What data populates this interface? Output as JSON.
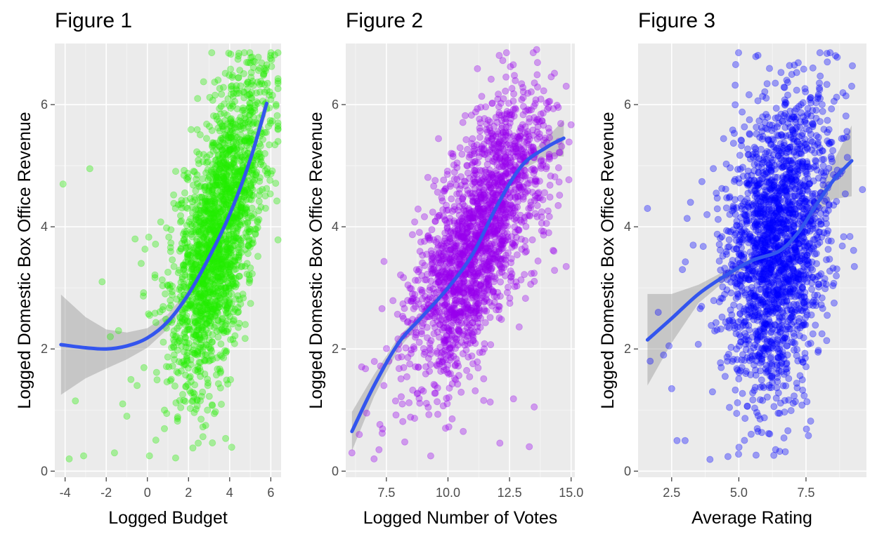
{
  "chart_data": [
    {
      "type": "scatter",
      "title": "Figure 1",
      "xlabel": "Logged Budget",
      "ylabel": "Logged Domestic Box Office Revenue",
      "xlim": [
        -4.5,
        6.5
      ],
      "ylim": [
        -0.1,
        7.0
      ],
      "x_ticks": [
        -4,
        -2,
        0,
        2,
        4,
        6
      ],
      "x_tick_labels": [
        "-4",
        "-2",
        "0",
        "2",
        "4",
        "6"
      ],
      "y_ticks": [
        0,
        2,
        4,
        6
      ],
      "y_tick_labels": [
        "0",
        "2",
        "4",
        "6"
      ],
      "grid": true,
      "point_color": "#22ee00",
      "point_opacity": 0.35,
      "n_points": 2000,
      "point_cloud": {
        "x_center": 3.5,
        "x_sd": 1.15,
        "y_sd": 1.05
      },
      "outliers": [
        [
          -4.1,
          4.7
        ],
        [
          -2.8,
          4.95
        ],
        [
          -3.8,
          0.2
        ],
        [
          -3.1,
          0.25
        ],
        [
          -2.2,
          3.1
        ],
        [
          -1.8,
          2.2
        ],
        [
          -1.4,
          2.3
        ],
        [
          -1.2,
          1.1
        ],
        [
          -1.0,
          0.9
        ],
        [
          -0.6,
          3.8
        ],
        [
          -0.3,
          3.4
        ],
        [
          -0.8,
          1.5
        ],
        [
          -0.5,
          1.4
        ],
        [
          0.1,
          0.25
        ],
        [
          -1.6,
          0.3
        ],
        [
          -3.5,
          1.15
        ]
      ],
      "trend": {
        "x": [
          -4.2,
          -3.0,
          -2.0,
          -1.0,
          0.0,
          1.0,
          2.0,
          3.0,
          4.0,
          5.0,
          5.8
        ],
        "y": [
          2.07,
          2.02,
          2.0,
          2.05,
          2.18,
          2.45,
          2.9,
          3.5,
          4.2,
          5.1,
          6.02
        ]
      },
      "band_halfwidth": [
        0.82,
        0.5,
        0.32,
        0.22,
        0.16,
        0.12,
        0.08,
        0.06,
        0.06,
        0.08,
        0.15
      ],
      "trend_color": "#3355ee"
    },
    {
      "type": "scatter",
      "title": "Figure 2",
      "xlabel": "Logged Number of Votes",
      "ylabel": "Logged Domestic Box Office Revenue",
      "xlim": [
        5.85,
        15.15
      ],
      "ylim": [
        -0.1,
        7.0
      ],
      "x_ticks": [
        7.5,
        10.0,
        12.5,
        15.0
      ],
      "x_tick_labels": [
        "7.5",
        "10.0",
        "12.5",
        "15.0"
      ],
      "y_ticks": [
        0,
        2,
        4,
        6
      ],
      "y_tick_labels": [
        "0",
        "2",
        "4",
        "6"
      ],
      "grid": true,
      "point_color": "#9900ee",
      "point_opacity": 0.35,
      "n_points": 2000,
      "point_cloud": {
        "x_center": 11.2,
        "x_sd": 1.35,
        "y_sd": 0.9
      },
      "outliers": [
        [
          6.1,
          0.3
        ],
        [
          6.4,
          0.6
        ],
        [
          6.7,
          0.95
        ],
        [
          7.0,
          0.2
        ],
        [
          7.2,
          0.35
        ],
        [
          7.4,
          1.4
        ],
        [
          7.6,
          1.8
        ],
        [
          13.5,
          1.05
        ],
        [
          13.3,
          0.4
        ],
        [
          14.3,
          3.6
        ],
        [
          14.8,
          3.35
        ],
        [
          13.6,
          6.9
        ],
        [
          14.8,
          6.3
        ]
      ],
      "trend": {
        "x": [
          6.1,
          7.0,
          8.0,
          9.0,
          10.0,
          11.0,
          12.0,
          13.0,
          14.0,
          14.7
        ],
        "y": [
          0.65,
          1.4,
          2.1,
          2.55,
          3.0,
          3.55,
          4.35,
          5.0,
          5.3,
          5.45
        ]
      },
      "band_halfwidth": [
        0.32,
        0.18,
        0.1,
        0.07,
        0.05,
        0.05,
        0.05,
        0.07,
        0.15,
        0.3
      ],
      "trend_color": "#3355ee"
    },
    {
      "type": "scatter",
      "title": "Figure 3",
      "xlabel": "Average Rating",
      "ylabel": "Logged Domestic Box Office Revenue",
      "xlim": [
        1.25,
        9.75
      ],
      "ylim": [
        -0.1,
        7.0
      ],
      "x_ticks": [
        2.5,
        5.0,
        7.5
      ],
      "x_tick_labels": [
        "2.5",
        "5.0",
        "7.5"
      ],
      "y_ticks": [
        0,
        2,
        4,
        6
      ],
      "y_tick_labels": [
        "0",
        "2",
        "4",
        "6"
      ],
      "grid": true,
      "point_color": "#0000ff",
      "point_opacity": 0.35,
      "n_points": 2000,
      "point_cloud": {
        "x_center": 6.4,
        "x_sd": 1.0,
        "y_sd": 1.3
      },
      "outliers": [
        [
          1.6,
          4.3
        ],
        [
          1.7,
          1.8
        ],
        [
          2.0,
          2.6
        ],
        [
          2.2,
          1.9
        ],
        [
          2.4,
          2.05
        ],
        [
          2.5,
          1.35
        ],
        [
          2.7,
          0.5
        ],
        [
          3.0,
          0.5
        ],
        [
          3.2,
          4.4
        ],
        [
          3.3,
          3.7
        ],
        [
          9.2,
          6.3
        ],
        [
          9.3,
          3.35
        ],
        [
          8.6,
          6.8
        ],
        [
          8.1,
          6.0
        ],
        [
          2.9,
          3.3
        ]
      ],
      "trend": {
        "x": [
          1.6,
          2.5,
          3.5,
          4.5,
          5.5,
          6.5,
          7.2,
          7.8,
          8.5,
          9.2
        ],
        "y": [
          2.15,
          2.5,
          2.9,
          3.2,
          3.45,
          3.6,
          3.9,
          4.3,
          4.75,
          5.08
        ]
      },
      "band_halfwidth": [
        0.75,
        0.4,
        0.15,
        0.08,
        0.06,
        0.06,
        0.07,
        0.12,
        0.3,
        0.58
      ],
      "trend_color": "#3355ee"
    }
  ]
}
